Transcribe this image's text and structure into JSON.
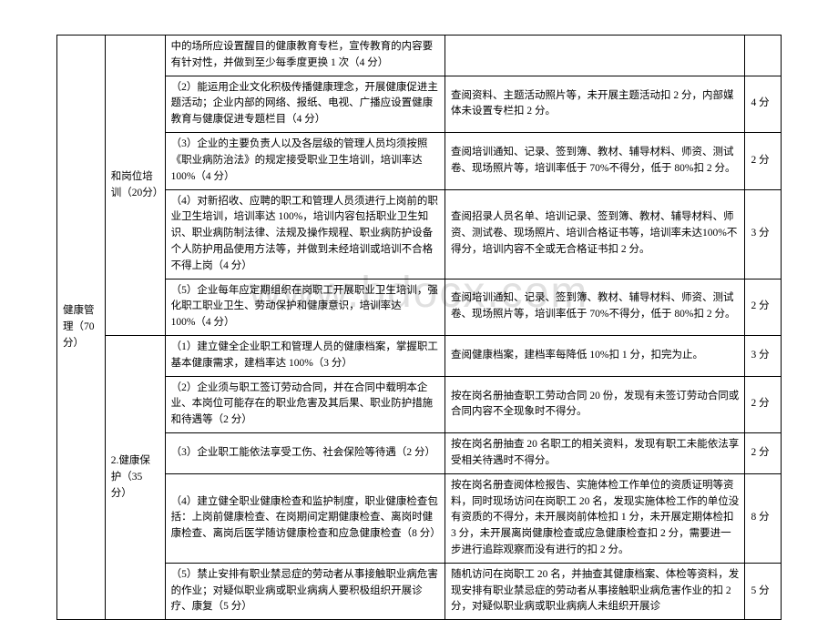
{
  "watermark": "www.bdocx.com",
  "rows": [
    {
      "c1": "健康管理（70分）",
      "c2": "和岗位培训（20分）",
      "c3": "中的场所应设置醒目的健康教育专栏，宣传教育的内容要有针对性，并做到至少每季度更换 1 次（4 分）",
      "c4": "",
      "c5": ""
    },
    {
      "c3": "（2）能运用企业文化积极传播健康理念，开展健康促进主题活动；企业内部的网络、报纸、电视、广播应设置健康教育与健康促进专题栏目（4 分）",
      "c4": "查阅资料、主题活动照片等，未开展主题活动扣 2 分，内部媒体未设置专栏扣 2 分。",
      "c5": "4 分"
    },
    {
      "c3": "（3）企业的主要负责人以及各层级的管理人员均须按照《职业病防治法》的规定接受职业卫生培训，培训率达 100%（4 分）",
      "c4": "查阅培训通知、记录、签到簿、教材、辅导材料、师资、测试卷、现场照片等，培训率低于 70%不得分，低于 80%扣 2 分。",
      "c5": "2 分"
    },
    {
      "c3": "（4）对新招收、应聘的职工和管理人员须进行上岗前的职业卫生培训，培训率达 100%，培训内容包括职业卫生知识、职业病防制法律、法规及操作规程、职业病防护设备个人防护用品使用方法等，并做到未经培训或培训不合格不得上岗（4 分）",
      "c4": "查阅招录人员名单、培训记录、签到簿、教材、辅导材料、师资、测试卷、现场照片、培训合格证书等，培训率未达100%不得分，培训内容不全或无合格证书扣 2 分。",
      "c5": "3 分"
    },
    {
      "c3": "（5）企业每年应定期组织在岗职工开展职业卫生培训，强化职工职业卫生、劳动保护和健康意识，培训率达 100%（4 分）",
      "c4": "查阅培训通知、记录、签到簿、教材、辅导材料、师资、测试卷、现场照片等，培训率低于 70%不得分，低于 80%扣 2 分。",
      "c5": "2 分"
    },
    {
      "c2": "2.健康保护（35 分）",
      "c3": "（1）建立健全企业职工和管理人员的健康档案，掌握职工基本健康需求，建档率达 100%（3 分）",
      "c4": "查阅健康档案，建档率每降低 10%扣 1 分，扣完为止。",
      "c5": "3 分"
    },
    {
      "c3": "（2）企业须与职工签订劳动合同，并在合同中载明本企业、本岗位可能存在的职业危害及其后果、职业防护措施和待遇等（2 分）",
      "c4": "按在岗名册抽查职工劳动合同 20 份，发现有未签订劳动合同或合同内容不全现象时不得分。",
      "c5": "2 分"
    },
    {
      "c3": "（3）企业职工能依法享受工伤、社会保险等待遇（2 分）",
      "c4": "按在岗名册抽查 20 名职工的相关资料，发现有职工未能依法享受相关待遇时不得分。",
      "c5": "2 分"
    },
    {
      "c3": "（4）建立健全职业健康检查和监护制度，职业健康检查包括：上岗前健康检查、在岗期间定期健康检查、离岗时健康检查、离岗后医学随访健康检查和应急健康检查（8 分）",
      "c4": "按在岗名册查阅体检报告、实施体检工作单位的资质证明等资料，同时现场访问在岗职工 20 名，发现实施体检工作的单位没有资质的不得分，未开展岗前体检扣 1 分，未开展定期体检扣 3 分，未开展离岗健康检查或应急健康检查扣 2 分，需要进一步进行追踪观察而没有进行的扣 2 分。",
      "c5": "8 分"
    },
    {
      "c3": "（5）禁止安排有职业禁忌症的劳动者从事接触职业病危害的作业；对疑似职业病或职业病病人要积极组织开展诊疗、康复（5 分）",
      "c4": "随机访问在岗职工 20 名，并抽查其健康档案、体检等资料，发现安排有职业禁忌症的劳动者从事接触职业病危害作业的扣 2 分，对疑似职业病或职业病病人未组织开展诊",
      "c5": "5 分"
    }
  ]
}
